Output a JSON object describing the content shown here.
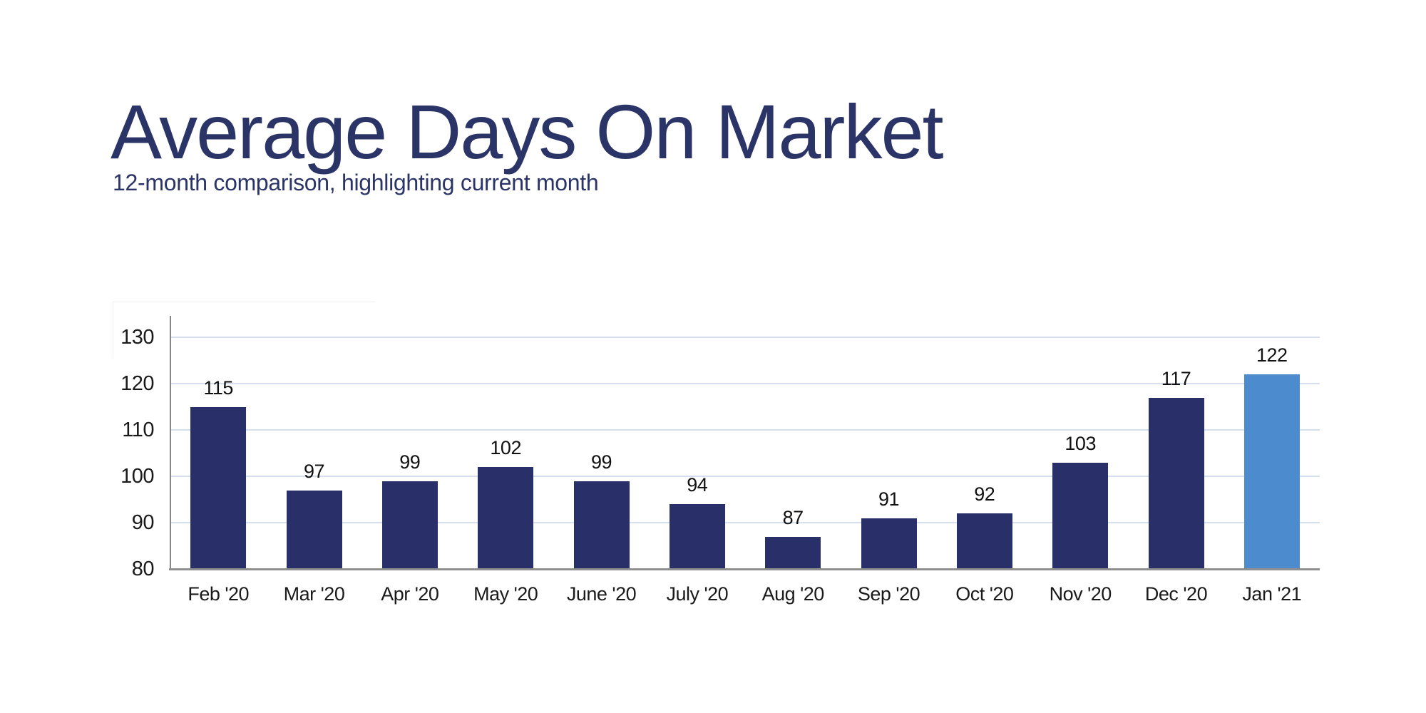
{
  "header": {
    "title": "Average Days On Market",
    "subtitle": "12-month comparison, highlighting current month",
    "title_color": "#2b3467"
  },
  "chart_data": {
    "type": "bar",
    "title": "Average Days On Market",
    "subtitle": "12-month comparison, highlighting current month",
    "categories": [
      "Feb '20",
      "Mar '20",
      "Apr '20",
      "May '20",
      "June '20",
      "July '20",
      "Aug '20",
      "Sep '20",
      "Oct '20",
      "Nov '20",
      "Dec '20",
      "Jan '21"
    ],
    "values": [
      115,
      97,
      99,
      102,
      99,
      94,
      87,
      91,
      92,
      103,
      117,
      122
    ],
    "value_labels_shown": true,
    "highlight_index": 11,
    "highlighted_category": "Jan '21",
    "highlighted_value": 122,
    "xlabel": "",
    "ylabel": "",
    "ylim": [
      80,
      135
    ],
    "yticks": [
      130,
      120,
      110,
      100,
      90,
      80
    ],
    "grid": "horizontal",
    "legend": "none",
    "colors": {
      "bar": "#293069",
      "highlight_bar": "#4c8bce",
      "gridline": "#d6dfee",
      "y_axis": "#878787",
      "x_axis": "#8f8f8f",
      "tick_text": "#1a1a1a",
      "value_text": "#111111"
    }
  }
}
